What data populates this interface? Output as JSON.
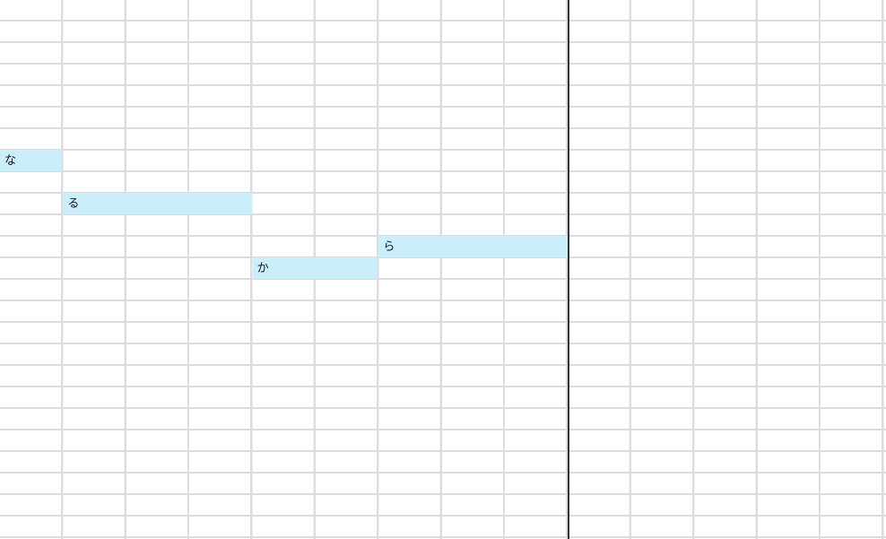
{
  "sheet": {
    "highlights": [
      {
        "text": "な",
        "row": 7,
        "col_start": 0,
        "col_span": 1
      },
      {
        "text": "る",
        "row": 9,
        "col_start": 1,
        "col_span": 3
      },
      {
        "text": "ら",
        "row": 11,
        "col_start": 6,
        "col_span": 3
      },
      {
        "text": "か",
        "row": 12,
        "col_start": 4,
        "col_span": 2
      }
    ],
    "highlight_color": "#cbeefb",
    "gridline_color": "#dcdcdc",
    "divider_after_col": 9,
    "rows": 25,
    "cols": 14
  }
}
